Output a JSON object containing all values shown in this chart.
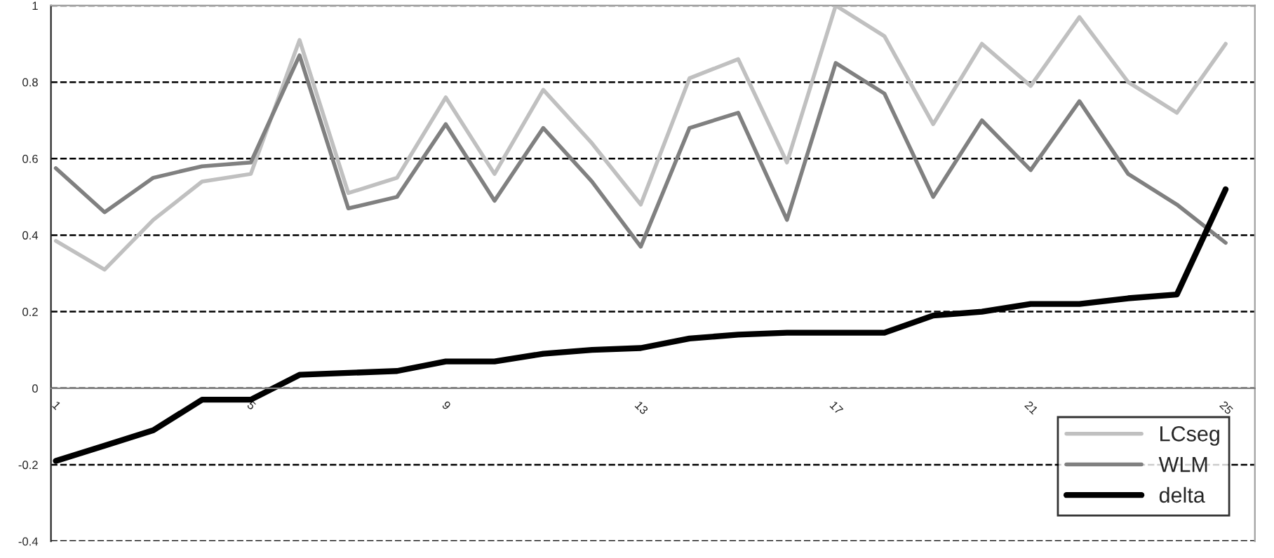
{
  "chart_data": {
    "type": "line",
    "categories": [
      "1",
      null,
      null,
      null,
      "5",
      null,
      null,
      null,
      "9",
      null,
      null,
      null,
      "13",
      null,
      null,
      null,
      "17",
      null,
      null,
      null,
      "21",
      null,
      null,
      null,
      "25"
    ],
    "series": [
      {
        "name": "LCseg",
        "color": "#c0c0c0",
        "values": [
          0.385,
          0.31,
          0.44,
          0.54,
          0.56,
          0.91,
          0.51,
          0.55,
          0.76,
          0.56,
          0.78,
          0.64,
          0.48,
          0.81,
          0.86,
          0.59,
          1.0,
          0.92,
          0.69,
          0.9,
          0.79,
          0.97,
          0.8,
          0.72,
          0.9
        ]
      },
      {
        "name": "WLM",
        "color": "#808080",
        "values": [
          0.575,
          0.46,
          0.55,
          0.58,
          0.59,
          0.87,
          0.47,
          0.5,
          0.69,
          0.49,
          0.68,
          0.54,
          0.37,
          0.68,
          0.72,
          0.44,
          0.85,
          0.77,
          0.5,
          0.7,
          0.57,
          0.75,
          0.56,
          0.48,
          0.38
        ]
      },
      {
        "name": "delta",
        "color": "#000000",
        "values": [
          -0.19,
          -0.15,
          -0.11,
          -0.03,
          -0.03,
          0.035,
          0.04,
          0.045,
          0.07,
          0.07,
          0.09,
          0.1,
          0.105,
          0.13,
          0.14,
          0.145,
          0.145,
          0.145,
          0.19,
          0.2,
          0.22,
          0.22,
          0.235,
          0.245,
          0.52
        ]
      }
    ],
    "ylim": [
      -0.4,
      1
    ],
    "yticks": [
      {
        "value": -0.4,
        "label": "-0.4"
      },
      {
        "value": -0.2,
        "label": "-0.2"
      },
      0,
      {
        "value": 0.2,
        "label": "0.2"
      },
      {
        "value": 0.4,
        "label": "0.4"
      },
      {
        "value": 0.6,
        "label": "0.6"
      },
      {
        "value": 0.8,
        "label": "0.8"
      },
      1
    ],
    "grid": "y",
    "line_style": "solid",
    "marker": "none",
    "legend": "bottom right"
  }
}
